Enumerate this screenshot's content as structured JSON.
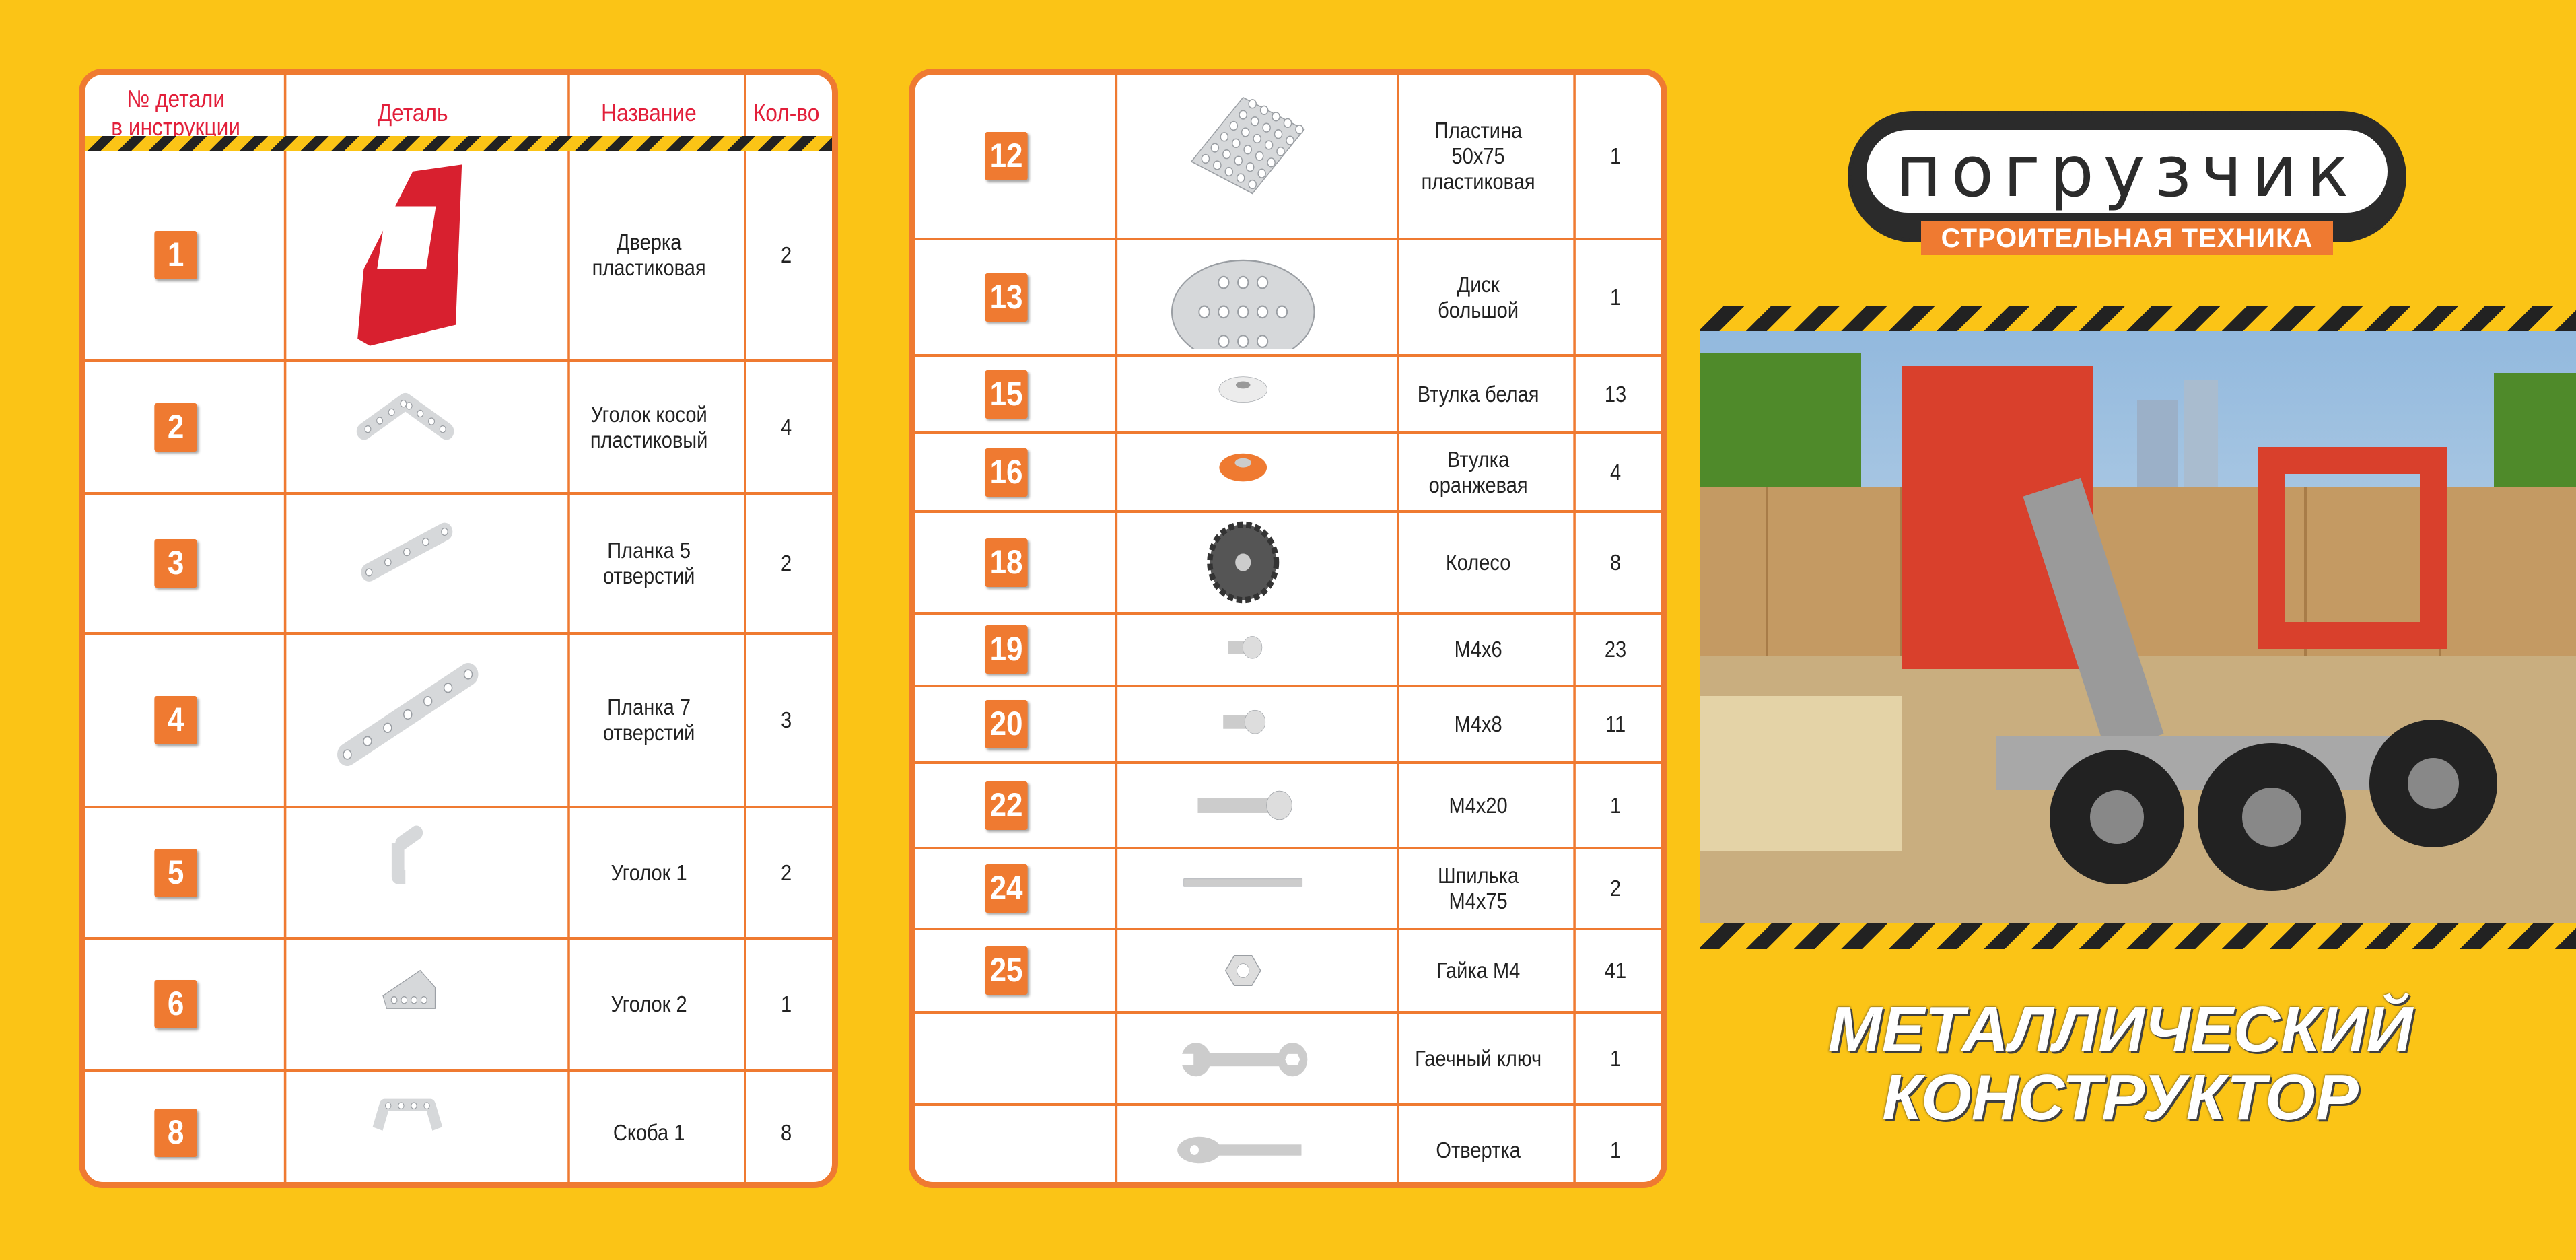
{
  "headers": {
    "num": "№ детали\nв инструкции",
    "part": "Деталь",
    "name": "Название",
    "qty": "Кол-во"
  },
  "left_parts": [
    {
      "num": "1",
      "name": "Дверка пластиковая",
      "qty": "2",
      "icon": "red-door-plate-icon"
    },
    {
      "num": "2",
      "name": "Уголок косой пластиковый",
      "qty": "4",
      "icon": "angled-strip-icon"
    },
    {
      "num": "3",
      "name": "Планка 5 отверстий",
      "qty": "2",
      "icon": "strip-5-icon"
    },
    {
      "num": "4",
      "name": "Планка 7 отверстий",
      "qty": "3",
      "icon": "strip-7-icon"
    },
    {
      "num": "5",
      "name": "Уголок 1",
      "qty": "2",
      "icon": "angle-bracket-icon"
    },
    {
      "num": "6",
      "name": "Уголок 2",
      "qty": "1",
      "icon": "angle-bracket-2-icon"
    },
    {
      "num": "8",
      "name": "Скоба 1",
      "qty": "8",
      "icon": "bracket-icon"
    }
  ],
  "right_parts": [
    {
      "num": "12",
      "name": "Пластина 50x75 пластиковая",
      "qty": "1",
      "icon": "perforated-plate-icon"
    },
    {
      "num": "13",
      "name": "Диск большой",
      "qty": "1",
      "icon": "disc-icon"
    },
    {
      "num": "15",
      "name": "Втулка белая",
      "qty": "13",
      "icon": "white-bushing-icon"
    },
    {
      "num": "16",
      "name": "Втулка оранжевая",
      "qty": "4",
      "icon": "orange-bushing-icon"
    },
    {
      "num": "18",
      "name": "Колесо",
      "qty": "8",
      "icon": "wheel-icon"
    },
    {
      "num": "19",
      "name": "M4x6",
      "qty": "23",
      "icon": "screw-short-icon"
    },
    {
      "num": "20",
      "name": "M4x8",
      "qty": "11",
      "icon": "screw-icon"
    },
    {
      "num": "22",
      "name": "M4x20",
      "qty": "1",
      "icon": "screw-long-icon"
    },
    {
      "num": "24",
      "name": "Шпилька M4x75",
      "qty": "2",
      "icon": "threaded-rod-icon"
    },
    {
      "num": "25",
      "name": "Гайка M4",
      "qty": "41",
      "icon": "nut-icon"
    },
    {
      "num": "",
      "name": "Гаечный ключ",
      "qty": "1",
      "icon": "wrench-icon"
    },
    {
      "num": "",
      "name": "Отвертка",
      "qty": "1",
      "icon": "screwdriver-icon"
    }
  ],
  "logo": {
    "title": "погрузчик",
    "subtitle": "СТРОИТЕЛЬНАЯ ТЕХНИКА"
  },
  "product_title": {
    "line1": "МЕТАЛЛИЧЕСКИЙ",
    "line2": "КОНСТРУКТОР"
  },
  "colors": {
    "background": "#fbc416",
    "accent": "#ef7a31",
    "header_text": "#e21f3a"
  }
}
